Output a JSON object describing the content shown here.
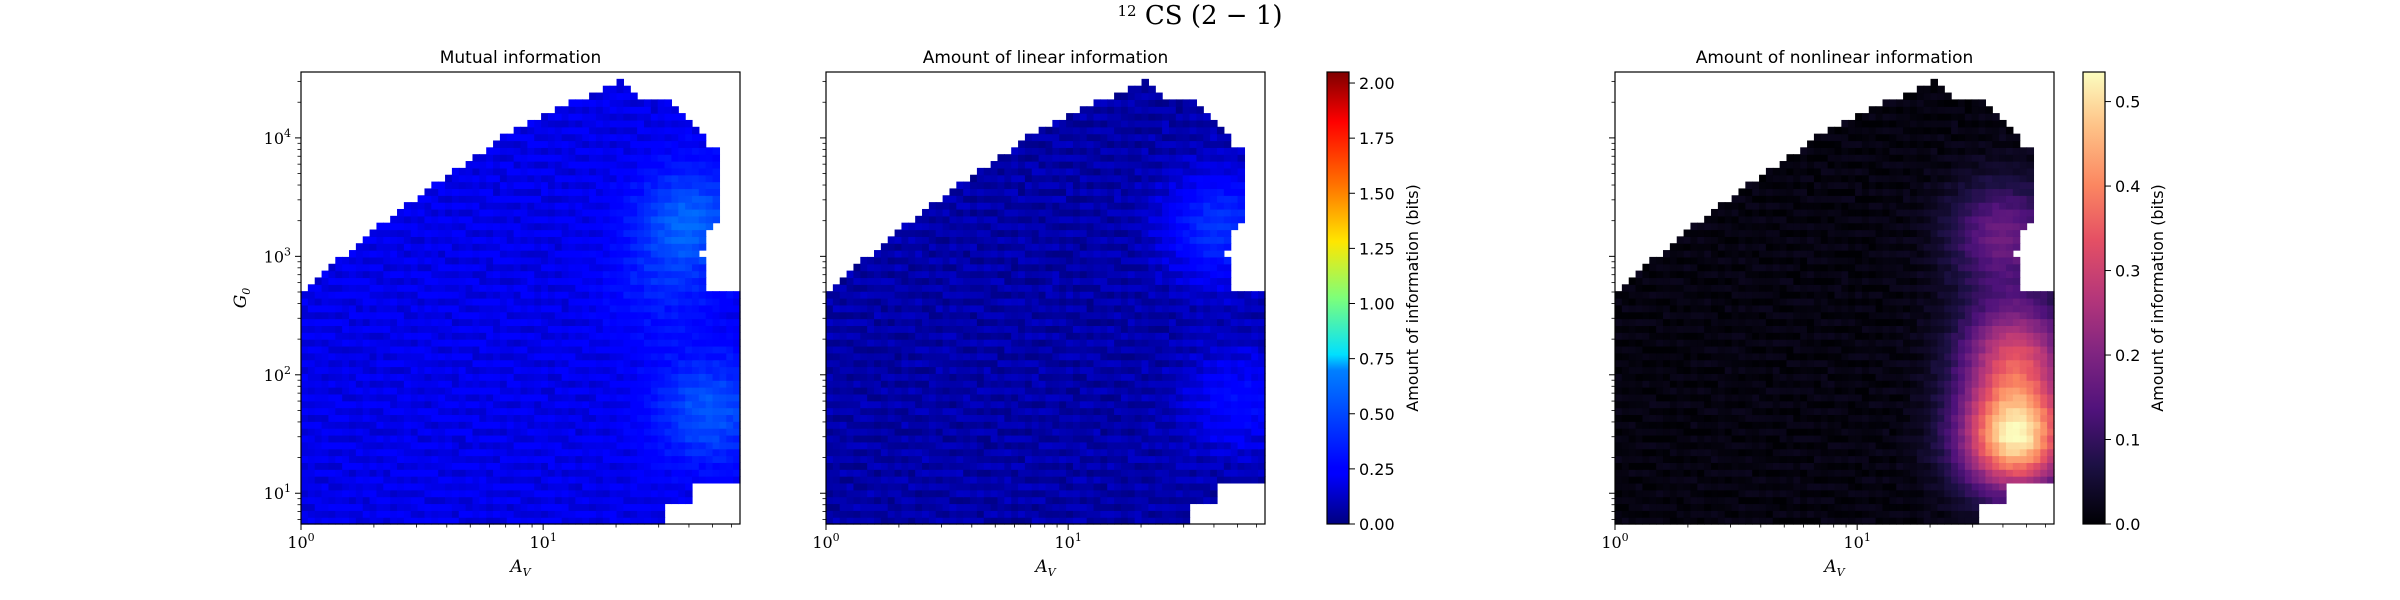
{
  "figure": {
    "suptitle_sup": "12",
    "suptitle_main": "CS (2 − 1)"
  },
  "chart_data": [
    {
      "type": "heatmap",
      "title": "Mutual information",
      "xlabel": "A",
      "xlabel_sub": "V",
      "ylabel": "G",
      "ylabel_sub": "0",
      "xscale": "log",
      "yscale": "log",
      "xlim": [
        1,
        65
      ],
      "ylim": [
        5.5,
        36000
      ],
      "x_ticks": [
        {
          "value": 1,
          "base": "10",
          "exp": "0"
        },
        {
          "value": 10,
          "base": "10",
          "exp": "1"
        }
      ],
      "y_ticks": [
        {
          "value": 10,
          "base": "10",
          "exp": "1"
        },
        {
          "value": 100,
          "base": "10",
          "exp": "2"
        },
        {
          "value": 1000,
          "base": "10",
          "exp": "3"
        },
        {
          "value": 10000,
          "base": "10",
          "exp": "4"
        }
      ],
      "colormap": "jet",
      "color_range": [
        0.0,
        2.05
      ],
      "hotspots": [
        {
          "x": 40,
          "y": 2000,
          "value": 0.62
        },
        {
          "x": 48,
          "y": 50,
          "value": 0.58
        },
        {
          "x": 30,
          "y": 500,
          "value": 0.35
        }
      ],
      "background_value": 0.22
    },
    {
      "type": "heatmap",
      "title": "Amount of linear information",
      "xlabel": "A",
      "xlabel_sub": "V",
      "xscale": "log",
      "yscale": "log",
      "xlim": [
        1,
        65
      ],
      "ylim": [
        5.5,
        36000
      ],
      "x_ticks": [
        {
          "value": 1,
          "base": "10",
          "exp": "0"
        },
        {
          "value": 10,
          "base": "10",
          "exp": "1"
        }
      ],
      "y_ticks": [],
      "colormap": "jet",
      "color_range": [
        0.0,
        2.05
      ],
      "hotspots": [
        {
          "x": 42,
          "y": 1800,
          "value": 0.45
        },
        {
          "x": 50,
          "y": 60,
          "value": 0.3
        }
      ],
      "background_value": 0.1
    },
    {
      "type": "heatmap",
      "title": "Amount of nonlinear information",
      "xlabel": "A",
      "xlabel_sub": "V",
      "xscale": "log",
      "yscale": "log",
      "xlim": [
        1,
        65
      ],
      "ylim": [
        5.5,
        36000
      ],
      "x_ticks": [
        {
          "value": 1,
          "base": "10",
          "exp": "0"
        },
        {
          "value": 10,
          "base": "10",
          "exp": "1"
        }
      ],
      "y_ticks": [],
      "colormap": "magma",
      "color_range": [
        0.0,
        0.535
      ],
      "hotspots": [
        {
          "x": 45,
          "y": 30,
          "value": 0.52
        },
        {
          "x": 45,
          "y": 150,
          "value": 0.3
        },
        {
          "x": 40,
          "y": 1500,
          "value": 0.18
        }
      ],
      "background_value": 0.02
    }
  ],
  "colorbars": [
    {
      "label": "Amount of information (bits)",
      "colormap": "jet",
      "range": [
        0.0,
        2.05
      ],
      "ticks": [
        "0.00",
        "0.25",
        "0.50",
        "0.75",
        "1.00",
        "1.25",
        "1.50",
        "1.75",
        "2.00"
      ],
      "tick_values": [
        0,
        0.25,
        0.5,
        0.75,
        1.0,
        1.25,
        1.5,
        1.75,
        2.0
      ]
    },
    {
      "label": "Amount of information (bits)",
      "colormap": "magma",
      "range": [
        0.0,
        0.535
      ],
      "ticks": [
        "0.0",
        "0.1",
        "0.2",
        "0.3",
        "0.4",
        "0.5"
      ],
      "tick_values": [
        0,
        0.1,
        0.2,
        0.3,
        0.4,
        0.5
      ]
    }
  ]
}
